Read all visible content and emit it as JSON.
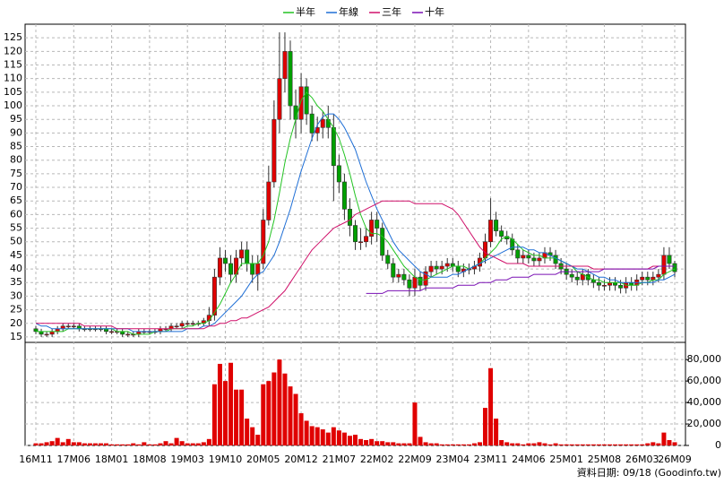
{
  "chart_data": {
    "type": "candlestick",
    "categories": [
      "16M11",
      null,
      null,
      null,
      null,
      null,
      null,
      "17M06",
      null,
      null,
      null,
      null,
      null,
      null,
      "18M01",
      null,
      null,
      null,
      null,
      null,
      null,
      "18M08",
      null,
      null,
      null,
      null,
      null,
      null,
      "19M03",
      null,
      null,
      null,
      null,
      null,
      null,
      "19M10",
      null,
      null,
      null,
      null,
      null,
      null,
      "20M05",
      null,
      null,
      null,
      null,
      null,
      null,
      "20M12",
      null,
      null,
      null,
      null,
      null,
      null,
      "21M07",
      null,
      null,
      null,
      null,
      null,
      null,
      "22M02",
      null,
      null,
      null,
      null,
      null,
      null,
      "22M09",
      null,
      null,
      null,
      null,
      null,
      null,
      "23M04",
      null,
      null,
      null,
      null,
      null,
      null,
      "23M11",
      null,
      null,
      null,
      null,
      null,
      null,
      "24M06",
      null,
      null,
      null,
      null,
      null,
      null,
      "25M01",
      null,
      null,
      null,
      null,
      null,
      null,
      "25M08",
      null,
      null,
      null,
      null,
      null,
      null,
      "26M03",
      null,
      null,
      null,
      null,
      null,
      "26M09"
    ],
    "open": [
      18,
      17,
      16,
      16,
      17,
      18,
      19,
      19,
      19,
      18,
      18,
      18,
      18,
      18,
      17,
      17,
      17,
      16,
      16,
      16,
      17,
      17,
      17,
      17,
      18,
      18,
      19,
      19,
      20,
      20,
      20,
      20,
      21,
      23,
      37,
      44,
      42,
      38,
      44,
      47,
      42,
      38,
      42,
      58,
      72,
      95,
      110,
      120,
      100,
      95,
      107,
      97,
      90,
      92,
      95,
      92,
      78,
      72,
      62,
      56,
      50,
      50,
      52,
      58,
      55,
      45,
      42,
      37,
      38,
      36,
      33,
      37,
      34,
      39,
      41,
      40,
      41,
      42,
      41,
      39,
      40,
      40,
      41,
      44,
      50,
      58,
      54,
      52,
      51,
      47,
      44,
      45,
      44,
      43,
      44,
      46,
      45,
      42,
      40,
      38,
      37,
      36,
      38,
      36,
      35,
      34,
      34,
      35,
      34,
      33,
      35,
      34,
      36,
      37,
      36,
      37,
      38,
      45,
      42
    ],
    "high": [
      19,
      18,
      17,
      18,
      19,
      20,
      20,
      20,
      20,
      19,
      19,
      19,
      19,
      19,
      18,
      18,
      18,
      17,
      17,
      18,
      18,
      18,
      18,
      19,
      19,
      20,
      20,
      21,
      21,
      21,
      21,
      22,
      26,
      40,
      48,
      47,
      45,
      47,
      50,
      50,
      45,
      45,
      62,
      78,
      102,
      127,
      127,
      124,
      106,
      112,
      110,
      100,
      96,
      98,
      100,
      97,
      82,
      75,
      66,
      58,
      55,
      55,
      61,
      61,
      57,
      47,
      44,
      40,
      40,
      38,
      40,
      39,
      41,
      43,
      43,
      43,
      44,
      44,
      43,
      42,
      42,
      43,
      46,
      53,
      66,
      61,
      56,
      54,
      53,
      49,
      47,
      47,
      46,
      46,
      48,
      48,
      47,
      44,
      42,
      40,
      39,
      40,
      40,
      38,
      37,
      36,
      37,
      37,
      36,
      37,
      37,
      38,
      39,
      39,
      39,
      40,
      48,
      48,
      43
    ],
    "low": [
      16,
      15,
      15,
      15,
      16,
      17,
      18,
      18,
      17,
      17,
      17,
      17,
      17,
      16,
      16,
      16,
      15,
      15,
      15,
      15,
      16,
      16,
      16,
      16,
      17,
      17,
      18,
      18,
      19,
      19,
      19,
      19,
      19,
      21,
      34,
      39,
      35,
      35,
      41,
      39,
      35,
      32,
      40,
      56,
      70,
      90,
      105,
      95,
      88,
      90,
      93,
      87,
      87,
      88,
      88,
      65,
      68,
      58,
      52,
      47,
      47,
      48,
      49,
      50,
      43,
      40,
      35,
      35,
      34,
      30,
      30,
      32,
      32,
      37,
      38,
      38,
      39,
      39,
      37,
      37,
      38,
      38,
      39,
      42,
      48,
      52,
      50,
      49,
      45,
      42,
      42,
      42,
      41,
      41,
      42,
      43,
      40,
      38,
      36,
      35,
      34,
      34,
      34,
      33,
      32,
      32,
      32,
      32,
      31,
      31,
      32,
      32,
      34,
      34,
      34,
      35,
      36,
      40,
      37
    ],
    "close": [
      17,
      16,
      16,
      17,
      18,
      19,
      19,
      19,
      18,
      18,
      18,
      18,
      18,
      17,
      17,
      17,
      16,
      16,
      16,
      17,
      17,
      17,
      17,
      18,
      18,
      19,
      19,
      20,
      20,
      20,
      20,
      21,
      23,
      37,
      44,
      42,
      38,
      44,
      47,
      42,
      38,
      42,
      58,
      72,
      95,
      110,
      120,
      100,
      95,
      107,
      97,
      90,
      92,
      95,
      92,
      78,
      72,
      62,
      56,
      50,
      50,
      52,
      58,
      55,
      45,
      42,
      37,
      38,
      36,
      33,
      37,
      34,
      39,
      41,
      40,
      41,
      42,
      41,
      39,
      40,
      40,
      41,
      44,
      50,
      58,
      54,
      52,
      51,
      47,
      44,
      45,
      44,
      43,
      44,
      46,
      45,
      42,
      40,
      38,
      37,
      36,
      38,
      36,
      35,
      34,
      34,
      35,
      34,
      33,
      35,
      34,
      36,
      37,
      36,
      37,
      38,
      45,
      42,
      39
    ],
    "up_color": "#e00000",
    "down_color": "#00a000",
    "series": [
      {
        "name": "半年",
        "color": "#22c322",
        "values": [
          17,
          17,
          17,
          17,
          17,
          17,
          18,
          18,
          18,
          18,
          18,
          18,
          18,
          18,
          18,
          17,
          17,
          17,
          16,
          16,
          16,
          16,
          17,
          17,
          17,
          18,
          18,
          18,
          19,
          19,
          20,
          20,
          21,
          24,
          27,
          31,
          35,
          38,
          42,
          42,
          42,
          42,
          45,
          50,
          58,
          68,
          79,
          88,
          95,
          102,
          105,
          103,
          100,
          98,
          95,
          92,
          88,
          82,
          75,
          67,
          60,
          55,
          53,
          53,
          52,
          50,
          47,
          44,
          41,
          39,
          37,
          36,
          36,
          37,
          38,
          39,
          40,
          41,
          41,
          41,
          40,
          41,
          42,
          44,
          46,
          48,
          51,
          52,
          51,
          49,
          47,
          46,
          45,
          45,
          44,
          44,
          44,
          43,
          42,
          41,
          39,
          38,
          37,
          36,
          36,
          35,
          35,
          35,
          35,
          34,
          34,
          34,
          35,
          35,
          36,
          36,
          38,
          39,
          40
        ]
      },
      {
        "name": "年線",
        "color": "#1f6fd6",
        "values": [
          20,
          19,
          19,
          18,
          18,
          18,
          18,
          18,
          18,
          18,
          18,
          18,
          18,
          18,
          18,
          18,
          18,
          18,
          17,
          17,
          17,
          17,
          17,
          17,
          17,
          17,
          17,
          17,
          18,
          18,
          18,
          19,
          19,
          20,
          22,
          24,
          26,
          28,
          30,
          33,
          36,
          38,
          39,
          42,
          45,
          50,
          56,
          62,
          69,
          76,
          82,
          88,
          93,
          96,
          97,
          97,
          95,
          92,
          88,
          84,
          78,
          72,
          67,
          62,
          58,
          54,
          50,
          47,
          45,
          43,
          41,
          39,
          38,
          37,
          37,
          37,
          37,
          38,
          38,
          39,
          40,
          41,
          42,
          43,
          44,
          45,
          46,
          47,
          48,
          48,
          48,
          47,
          47,
          46,
          46,
          45,
          44,
          43,
          42,
          41,
          40,
          40,
          39,
          38,
          37,
          37,
          36,
          36,
          35,
          35,
          35,
          35,
          35,
          35,
          35,
          36,
          36,
          37,
          38
        ]
      },
      {
        "name": "三年",
        "color": "#d0106a",
        "values": [
          20,
          20,
          20,
          20,
          20,
          20,
          20,
          20,
          20,
          19,
          19,
          19,
          19,
          19,
          19,
          18,
          18,
          18,
          18,
          18,
          18,
          18,
          18,
          18,
          18,
          18,
          18,
          18,
          18,
          18,
          18,
          18,
          19,
          19,
          20,
          20,
          21,
          21,
          22,
          22,
          23,
          24,
          25,
          26,
          28,
          30,
          32,
          35,
          38,
          41,
          44,
          47,
          49,
          51,
          53,
          55,
          56,
          57,
          58,
          60,
          61,
          62,
          63,
          64,
          65,
          65,
          65,
          65,
          65,
          65,
          64,
          64,
          64,
          64,
          64,
          64,
          63,
          62,
          60,
          57,
          54,
          51,
          48,
          46,
          45,
          44,
          43,
          42,
          42,
          42,
          42,
          41,
          41,
          41,
          41,
          41,
          41,
          41,
          41,
          41,
          41,
          41,
          41,
          40,
          40,
          40,
          40,
          40,
          40,
          40,
          40,
          40,
          40,
          40,
          41,
          41,
          41,
          41,
          41
        ]
      },
      {
        "name": "十年",
        "color": "#7a10b4",
        "values": [
          null,
          null,
          null,
          null,
          null,
          null,
          null,
          null,
          null,
          null,
          null,
          null,
          null,
          null,
          null,
          null,
          null,
          null,
          null,
          null,
          null,
          null,
          null,
          null,
          null,
          null,
          null,
          null,
          null,
          null,
          null,
          null,
          null,
          null,
          null,
          null,
          null,
          null,
          null,
          null,
          null,
          null,
          null,
          null,
          null,
          null,
          null,
          null,
          null,
          null,
          null,
          null,
          null,
          null,
          null,
          null,
          null,
          null,
          null,
          null,
          null,
          31,
          31,
          31,
          31,
          32,
          32,
          32,
          32,
          32,
          32,
          32,
          33,
          33,
          33,
          33,
          33,
          33,
          34,
          34,
          34,
          34,
          35,
          35,
          35,
          36,
          36,
          36,
          37,
          37,
          37,
          37,
          38,
          38,
          38,
          38,
          38,
          39,
          39,
          39,
          39,
          39,
          39,
          39,
          39,
          40,
          40,
          40,
          40,
          40,
          40,
          40,
          40,
          40,
          40,
          41,
          41,
          41,
          41
        ]
      }
    ],
    "volume": {
      "color": "#e00000",
      "axis": "y2",
      "values": [
        2000,
        2000,
        3000,
        4000,
        7000,
        3000,
        6000,
        3000,
        3000,
        2000,
        2000,
        2000,
        2000,
        2000,
        1000,
        1000,
        1000,
        1000,
        2000,
        1000,
        3000,
        1000,
        1000,
        2000,
        4000,
        2000,
        7000,
        4000,
        2000,
        2000,
        2000,
        3000,
        6000,
        57000,
        76000,
        60000,
        77000,
        52000,
        52000,
        25000,
        17000,
        10000,
        57000,
        60000,
        68000,
        80000,
        67000,
        55000,
        48000,
        30000,
        23000,
        18000,
        17000,
        15000,
        12000,
        17000,
        14000,
        12000,
        9000,
        10000,
        6000,
        5000,
        6000,
        4000,
        4000,
        3000,
        3000,
        2000,
        2000,
        2000,
        40000,
        8000,
        3000,
        2000,
        2000,
        1000,
        1000,
        1000,
        1000,
        1000,
        1000,
        2000,
        3000,
        35000,
        72000,
        25000,
        5000,
        3000,
        2000,
        2000,
        1000,
        2000,
        2000,
        3000,
        2000,
        1000,
        2000,
        1000,
        1000,
        1000,
        1000,
        1000,
        1000,
        1000,
        1000,
        1000,
        1000,
        1000,
        1000,
        1000,
        1000,
        1000,
        1000,
        2000,
        3000,
        2000,
        12000,
        5000,
        3000
      ]
    },
    "ylim": [
      13,
      130
    ],
    "yticks": [
      15,
      20,
      25,
      30,
      35,
      40,
      45,
      50,
      55,
      60,
      65,
      70,
      75,
      80,
      85,
      90,
      95,
      100,
      105,
      110,
      115,
      120,
      125
    ],
    "y2lim": [
      0,
      96000
    ],
    "y2ticks": [
      0,
      {
        "value": 20000,
        "label": "20,000"
      },
      {
        "value": 40000,
        "label": "40,000"
      },
      {
        "value": 60000,
        "label": "60,000"
      },
      {
        "value": 80000,
        "label": "80,000"
      }
    ],
    "grid": true,
    "legend": "top",
    "source": "資料日期: 09/18 (Goodinfo.tw)"
  }
}
